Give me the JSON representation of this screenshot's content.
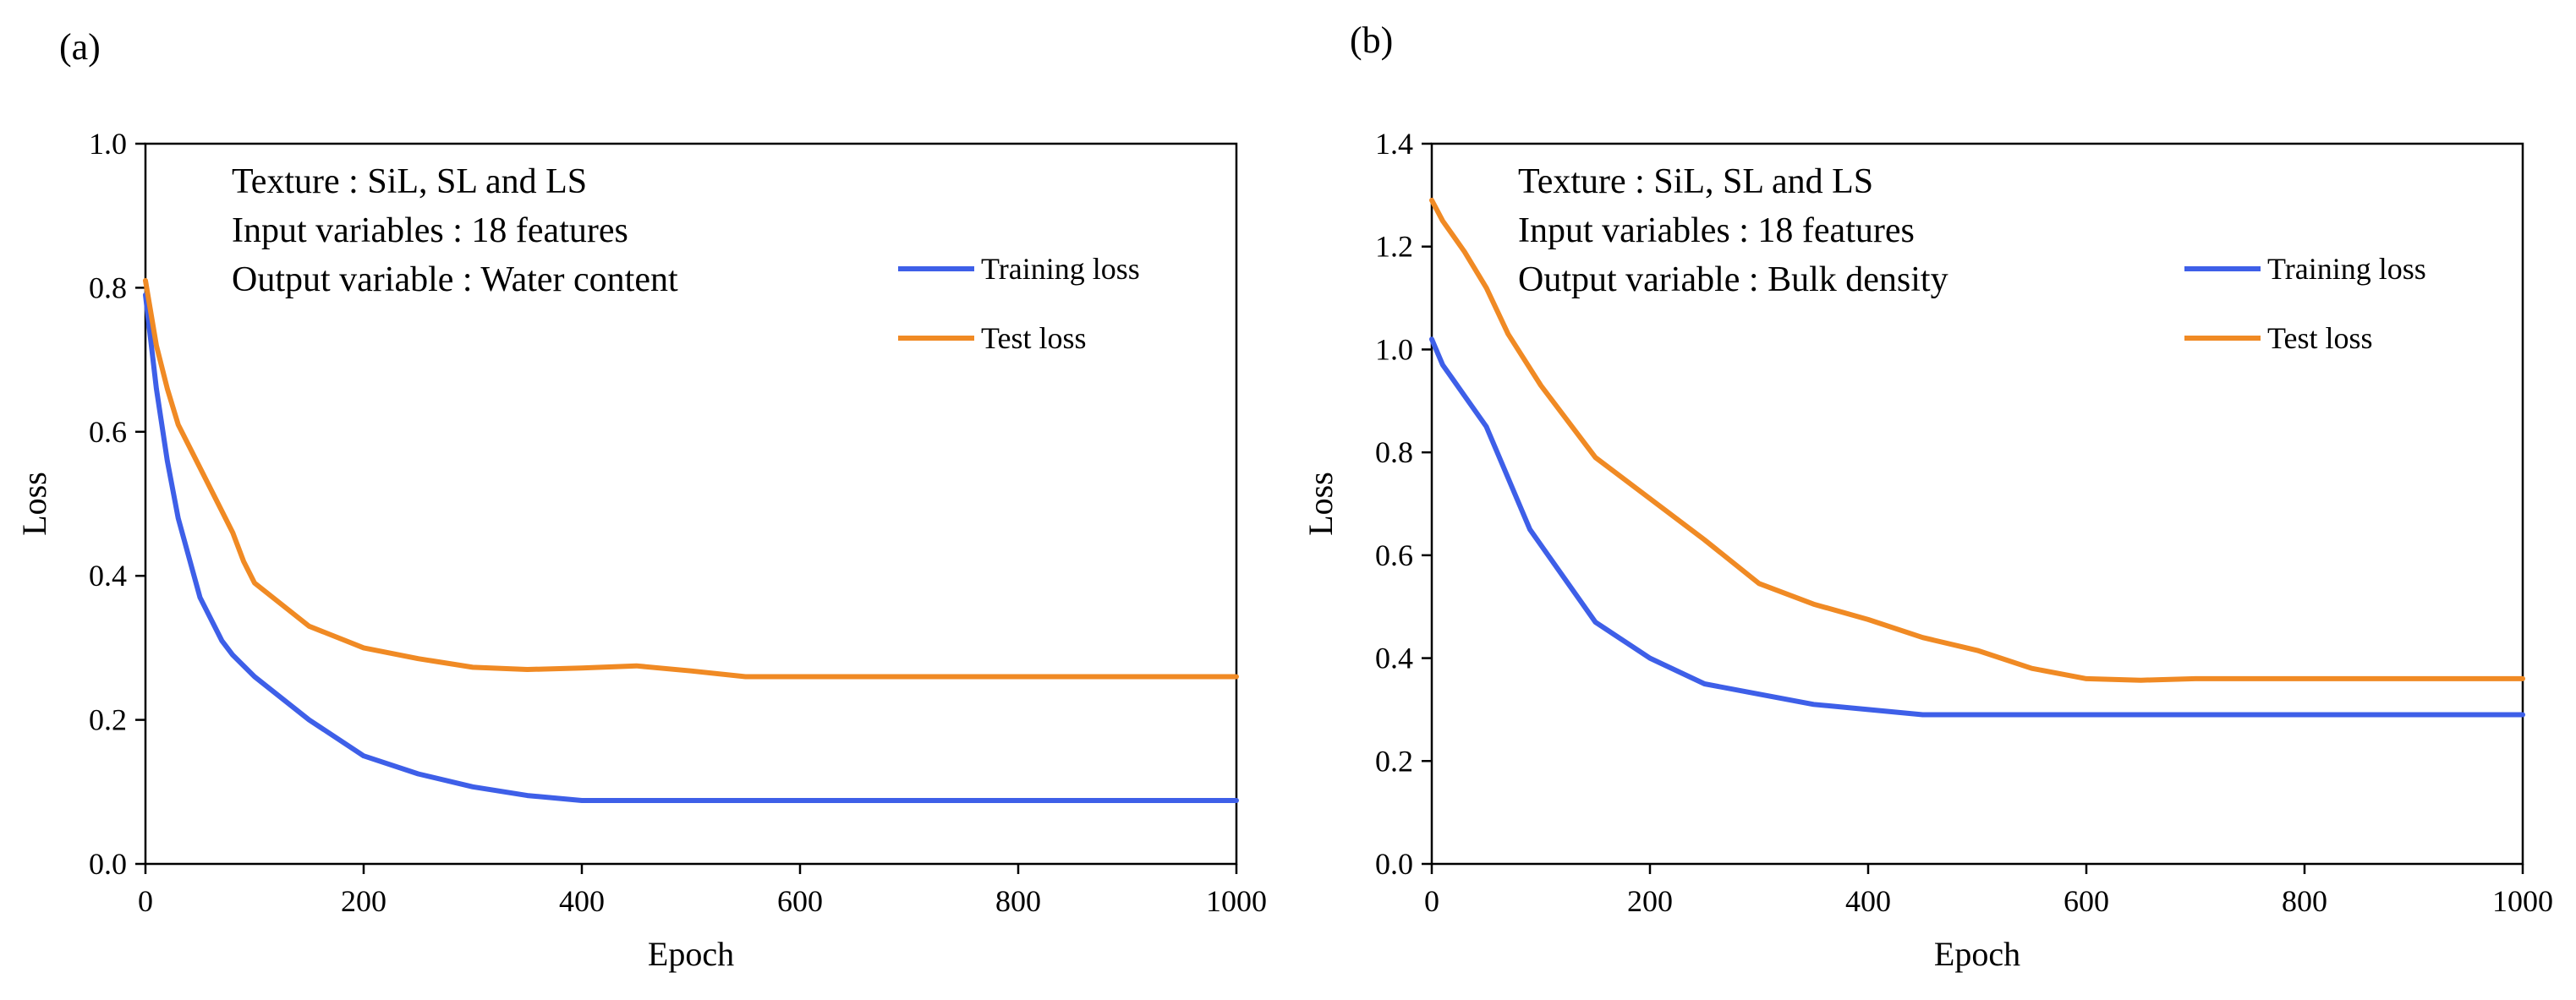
{
  "chart_data": [
    {
      "panel_label": "(a)",
      "type": "line",
      "xlabel": "Epoch",
      "ylabel": "Loss",
      "xlim": [
        0,
        1000
      ],
      "ylim": [
        0,
        1.0
      ],
      "xticks": [
        "0",
        "200",
        "400",
        "600",
        "800",
        "1000"
      ],
      "yticks": [
        "0.0",
        "0.2",
        "0.4",
        "0.6",
        "0.8",
        "1.0"
      ],
      "annotations": [
        "Texture : SiL, SL and LS",
        "Input variables : 18 features",
        "Output variable : Water content"
      ],
      "legend_position": "top-right",
      "series": [
        {
          "name": "Training loss",
          "color": "#3e5fe8",
          "x": [
            0,
            10,
            20,
            30,
            50,
            70,
            80,
            100,
            150,
            200,
            250,
            300,
            350,
            400,
            450,
            500,
            1000
          ],
          "y": [
            0.79,
            0.66,
            0.56,
            0.48,
            0.37,
            0.31,
            0.29,
            0.26,
            0.2,
            0.15,
            0.125,
            0.107,
            0.095,
            0.088,
            0.088,
            0.088,
            0.088
          ]
        },
        {
          "name": "Test loss",
          "color": "#f08a24",
          "x": [
            0,
            10,
            20,
            30,
            50,
            70,
            80,
            90,
            100,
            150,
            200,
            250,
            300,
            350,
            400,
            450,
            500,
            550,
            600,
            1000
          ],
          "y": [
            0.81,
            0.72,
            0.66,
            0.61,
            0.55,
            0.49,
            0.46,
            0.42,
            0.39,
            0.33,
            0.3,
            0.285,
            0.273,
            0.27,
            0.272,
            0.275,
            0.268,
            0.26,
            0.26,
            0.26
          ]
        }
      ]
    },
    {
      "panel_label": "(b)",
      "type": "line",
      "xlabel": "Epoch",
      "ylabel": "Loss",
      "xlim": [
        0,
        1000
      ],
      "ylim": [
        0,
        1.4
      ],
      "xticks": [
        "0",
        "200",
        "400",
        "600",
        "800",
        "1000"
      ],
      "yticks": [
        "0.0",
        "0.2",
        "0.4",
        "0.6",
        "0.8",
        "1.0",
        "1.2",
        "1.4"
      ],
      "annotations": [
        "Texture : SiL, SL and LS",
        "Input variables : 18 features",
        "Output variable : Bulk density"
      ],
      "legend_position": "top-right",
      "series": [
        {
          "name": "Training loss",
          "color": "#3e5fe8",
          "x": [
            0,
            10,
            20,
            30,
            50,
            70,
            80,
            90,
            100,
            150,
            200,
            250,
            300,
            350,
            400,
            450,
            500,
            1000
          ],
          "y": [
            1.02,
            0.97,
            0.94,
            0.91,
            0.85,
            0.75,
            0.7,
            0.65,
            0.62,
            0.47,
            0.4,
            0.35,
            0.33,
            0.31,
            0.3,
            0.29,
            0.29,
            0.29
          ]
        },
        {
          "name": "Test loss",
          "color": "#f08a24",
          "x": [
            0,
            10,
            20,
            30,
            50,
            70,
            100,
            150,
            200,
            250,
            300,
            350,
            400,
            450,
            500,
            550,
            600,
            650,
            700,
            1000
          ],
          "y": [
            1.29,
            1.25,
            1.22,
            1.19,
            1.12,
            1.03,
            0.93,
            0.79,
            0.71,
            0.63,
            0.545,
            0.505,
            0.475,
            0.44,
            0.415,
            0.38,
            0.36,
            0.357,
            0.36,
            0.36
          ]
        }
      ]
    }
  ]
}
